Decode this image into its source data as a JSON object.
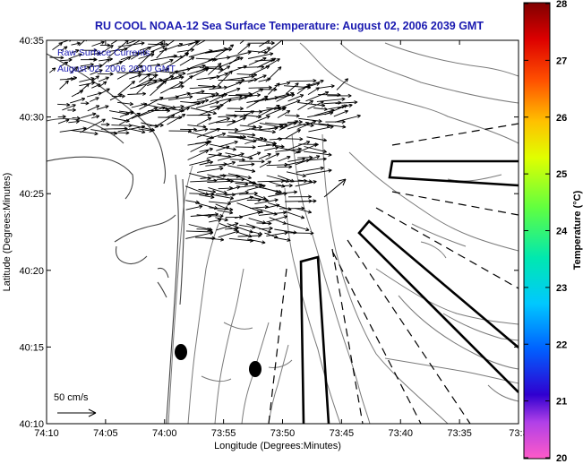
{
  "title": "RU COOL  NOAA-12  Sea Surface Temperature:  August 02, 2006 2039 GMT",
  "legend": {
    "line1": "Raw Surface Currents",
    "line2": "August 02, 2006 20:00 GMT"
  },
  "scale_label": "50 cm/s",
  "x_axis": {
    "label": "Longitude (Degrees:Minutes)",
    "ticks": [
      "74:10",
      "74:05",
      "74:00",
      "73:55",
      "73:50",
      "73:45",
      "73:40",
      "73:35",
      "73:3"
    ]
  },
  "y_axis": {
    "label": "Latitude (Degrees:Minutes)",
    "ticks": [
      "40:35",
      "40:30",
      "40:25",
      "40:20",
      "40:15",
      "40:10"
    ]
  },
  "colorbar": {
    "label": "Temperature (°C)",
    "ticks": [
      "28",
      "27",
      "26",
      "25",
      "24",
      "23",
      "22",
      "21",
      "20"
    ],
    "min": 20,
    "max": 28,
    "colors": [
      "#ff5ac8",
      "#a040e0",
      "#0000cc",
      "#00b0ff",
      "#00e0c0",
      "#80ff40",
      "#ffff00",
      "#ff9000",
      "#dd0000",
      "#8a0000"
    ]
  }
}
